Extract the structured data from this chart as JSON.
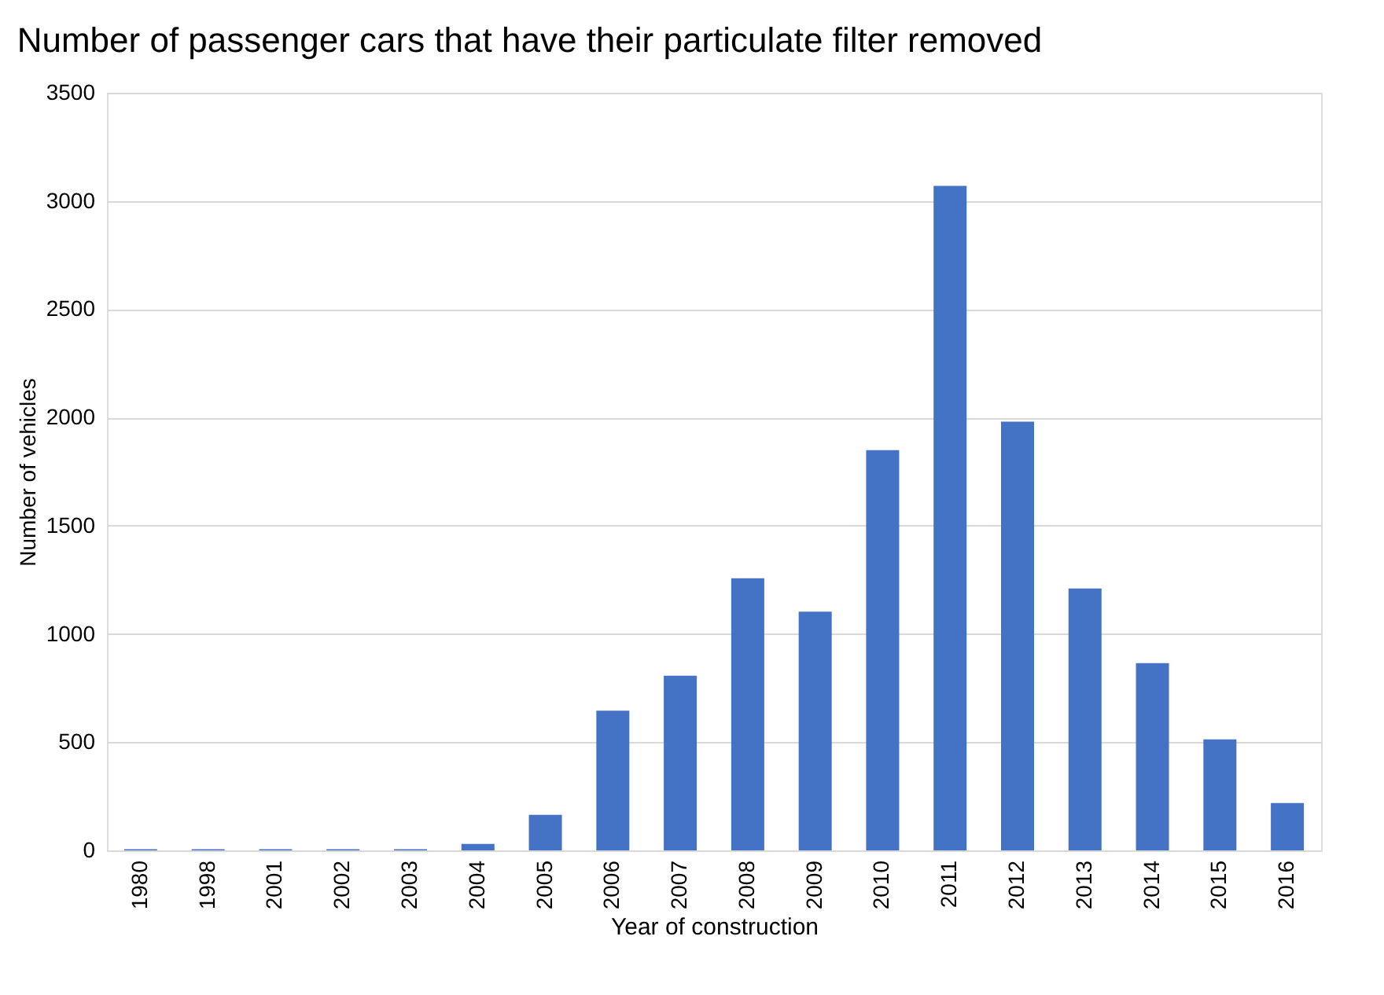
{
  "chart_data": {
    "type": "bar",
    "title": "Number of passenger cars that have their particulate filter removed",
    "xlabel": "Year of construction",
    "ylabel": "Number of vehicles",
    "categories": [
      "1980",
      "1998",
      "2001",
      "2002",
      "2003",
      "2004",
      "2005",
      "2006",
      "2007",
      "2008",
      "2009",
      "2010",
      "2011",
      "2012",
      "2013",
      "2014",
      "2015",
      "2016"
    ],
    "values": [
      5,
      5,
      5,
      5,
      5,
      30,
      164,
      645,
      807,
      1257,
      1103,
      1849,
      3070,
      1981,
      1210,
      865,
      513,
      219
    ],
    "color": "#4472c4",
    "ylim": [
      0,
      3500
    ],
    "yticks": [
      0,
      500,
      1000,
      1500,
      2000,
      2500,
      3000,
      3500
    ],
    "grid": "y"
  }
}
